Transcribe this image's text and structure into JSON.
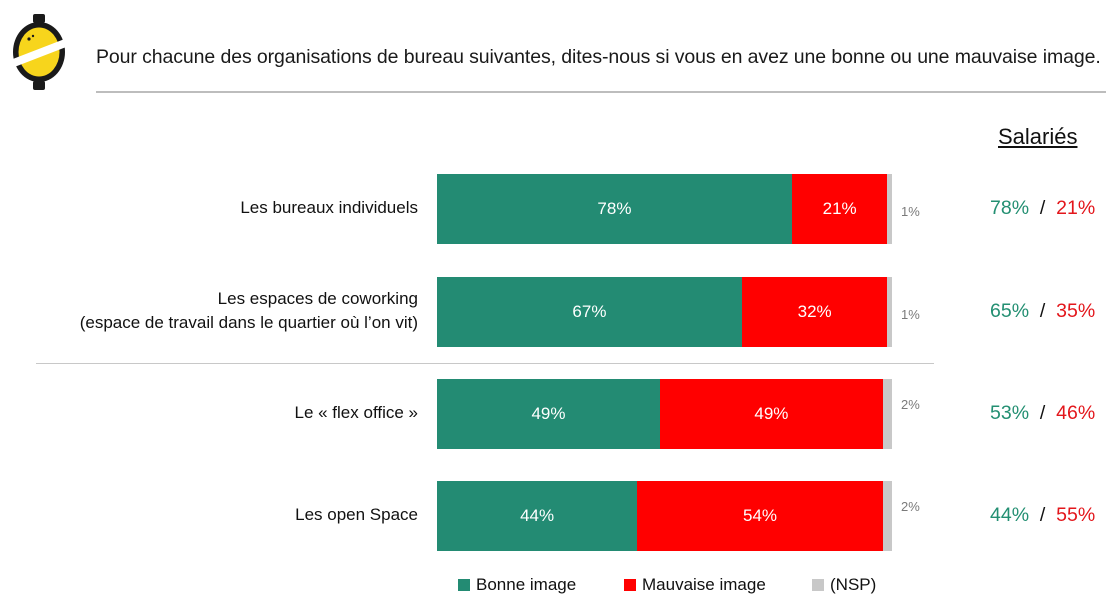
{
  "question": "Pour chacune des organisations de bureau suivantes, dites-nous si vous en avez une bonne ou une mauvaise image.",
  "salaries_header": "Salariés",
  "colors": {
    "bonne": "#238b73",
    "mauvaise": "#ff0000",
    "nsp": "#c8c8c8"
  },
  "logo_icon": "yellow-circle-logo-icon",
  "chart_data": {
    "type": "bar",
    "orientation": "horizontal",
    "stacked": true,
    "xlim": [
      0,
      100
    ],
    "categories": [
      [
        "Les bureaux individuels"
      ],
      [
        "Les espaces de coworking",
        "(espace de travail dans le quartier où l’on vit)"
      ],
      [
        "Le « flex office »"
      ],
      [
        "Les open Space"
      ]
    ],
    "series": [
      {
        "name": "Bonne image",
        "values": [
          78,
          67,
          49,
          44
        ],
        "labels": [
          "78%",
          "67%",
          "49%",
          "44%"
        ]
      },
      {
        "name": "Mauvaise image",
        "values": [
          21,
          32,
          49,
          54
        ],
        "labels": [
          "21%",
          "32%",
          "49%",
          "54%"
        ]
      },
      {
        "name": "(NSP)",
        "values": [
          1,
          1,
          2,
          2
        ],
        "labels": [
          "1%",
          "1%",
          "2%",
          "2%"
        ]
      }
    ],
    "salaries": [
      {
        "bonne": "78%",
        "mauvaise": "21%"
      },
      {
        "bonne": "65%",
        "mauvaise": "35%"
      },
      {
        "bonne": "53%",
        "mauvaise": "46%"
      },
      {
        "bonne": "44%",
        "mauvaise": "55%"
      }
    ],
    "separator": "/",
    "legend_position": "bottom"
  }
}
